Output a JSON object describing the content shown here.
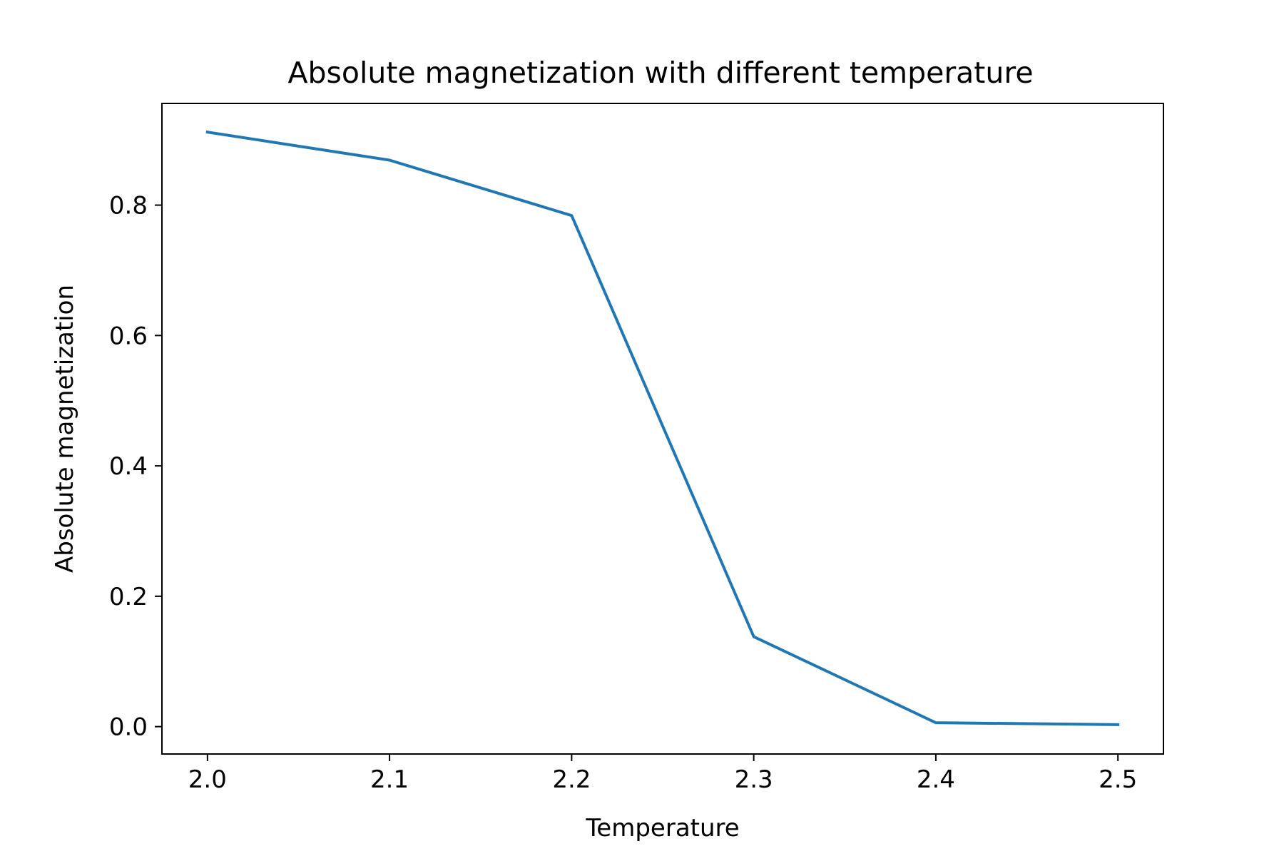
{
  "chart_data": {
    "type": "line",
    "title": "Absolute magnetization with different temperature",
    "xlabel": "Temperature",
    "ylabel": "Absolute magnetization",
    "x": [
      2.0,
      2.1,
      2.2,
      2.3,
      2.4,
      2.5
    ],
    "series": [
      {
        "values": [
          0.912,
          0.869,
          0.784,
          0.138,
          0.006,
          0.003
        ],
        "color": "#1f77b4"
      }
    ],
    "xlim": [
      1.975,
      2.525
    ],
    "ylim": [
      -0.042,
      0.956
    ],
    "xticks": [
      "2.0",
      "2.1",
      "2.2",
      "2.3",
      "2.4",
      "2.5"
    ],
    "yticks": [
      "0.0",
      "0.2",
      "0.4",
      "0.6",
      "0.8"
    ],
    "xtick_values": [
      2.0,
      2.1,
      2.2,
      2.3,
      2.4,
      2.5
    ],
    "ytick_values": [
      0.0,
      0.2,
      0.4,
      0.6,
      0.8
    ],
    "grid": false,
    "legend": "none"
  }
}
